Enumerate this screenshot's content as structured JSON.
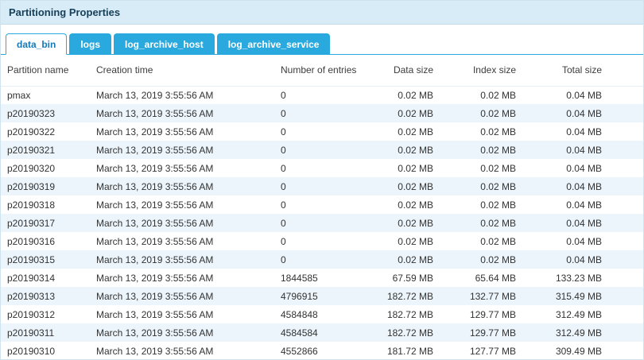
{
  "header": {
    "title": "Partitioning Properties"
  },
  "tabs": [
    {
      "label": "data_bin",
      "active": true
    },
    {
      "label": "logs",
      "active": false
    },
    {
      "label": "log_archive_host",
      "active": false
    },
    {
      "label": "log_archive_service",
      "active": false
    }
  ],
  "colors": {
    "title_bar_bg": "#d8ecf7",
    "tab_inactive_bg": "#29a9de",
    "tab_active_text": "#1779b8",
    "alt_row_bg": "#ecf5fb"
  },
  "table": {
    "columns": [
      "Partition name",
      "Creation time",
      "Number of entries",
      "Data size",
      "Index size",
      "Total size"
    ],
    "rows": [
      [
        "pmax",
        "March 13, 2019 3:55:56 AM",
        "0",
        "0.02 MB",
        "0.02 MB",
        "0.04 MB"
      ],
      [
        "p20190323",
        "March 13, 2019 3:55:56 AM",
        "0",
        "0.02 MB",
        "0.02 MB",
        "0.04 MB"
      ],
      [
        "p20190322",
        "March 13, 2019 3:55:56 AM",
        "0",
        "0.02 MB",
        "0.02 MB",
        "0.04 MB"
      ],
      [
        "p20190321",
        "March 13, 2019 3:55:56 AM",
        "0",
        "0.02 MB",
        "0.02 MB",
        "0.04 MB"
      ],
      [
        "p20190320",
        "March 13, 2019 3:55:56 AM",
        "0",
        "0.02 MB",
        "0.02 MB",
        "0.04 MB"
      ],
      [
        "p20190319",
        "March 13, 2019 3:55:56 AM",
        "0",
        "0.02 MB",
        "0.02 MB",
        "0.04 MB"
      ],
      [
        "p20190318",
        "March 13, 2019 3:55:56 AM",
        "0",
        "0.02 MB",
        "0.02 MB",
        "0.04 MB"
      ],
      [
        "p20190317",
        "March 13, 2019 3:55:56 AM",
        "0",
        "0.02 MB",
        "0.02 MB",
        "0.04 MB"
      ],
      [
        "p20190316",
        "March 13, 2019 3:55:56 AM",
        "0",
        "0.02 MB",
        "0.02 MB",
        "0.04 MB"
      ],
      [
        "p20190315",
        "March 13, 2019 3:55:56 AM",
        "0",
        "0.02 MB",
        "0.02 MB",
        "0.04 MB"
      ],
      [
        "p20190314",
        "March 13, 2019 3:55:56 AM",
        "1844585",
        "67.59 MB",
        "65.64 MB",
        "133.23 MB"
      ],
      [
        "p20190313",
        "March 13, 2019 3:55:56 AM",
        "4796915",
        "182.72 MB",
        "132.77 MB",
        "315.49 MB"
      ],
      [
        "p20190312",
        "March 13, 2019 3:55:56 AM",
        "4584848",
        "182.72 MB",
        "129.77 MB",
        "312.49 MB"
      ],
      [
        "p20190311",
        "March 13, 2019 3:55:56 AM",
        "4584584",
        "182.72 MB",
        "129.77 MB",
        "312.49 MB"
      ],
      [
        "p20190310",
        "March 13, 2019 3:55:56 AM",
        "4552866",
        "181.72 MB",
        "127.77 MB",
        "309.49 MB"
      ]
    ]
  }
}
